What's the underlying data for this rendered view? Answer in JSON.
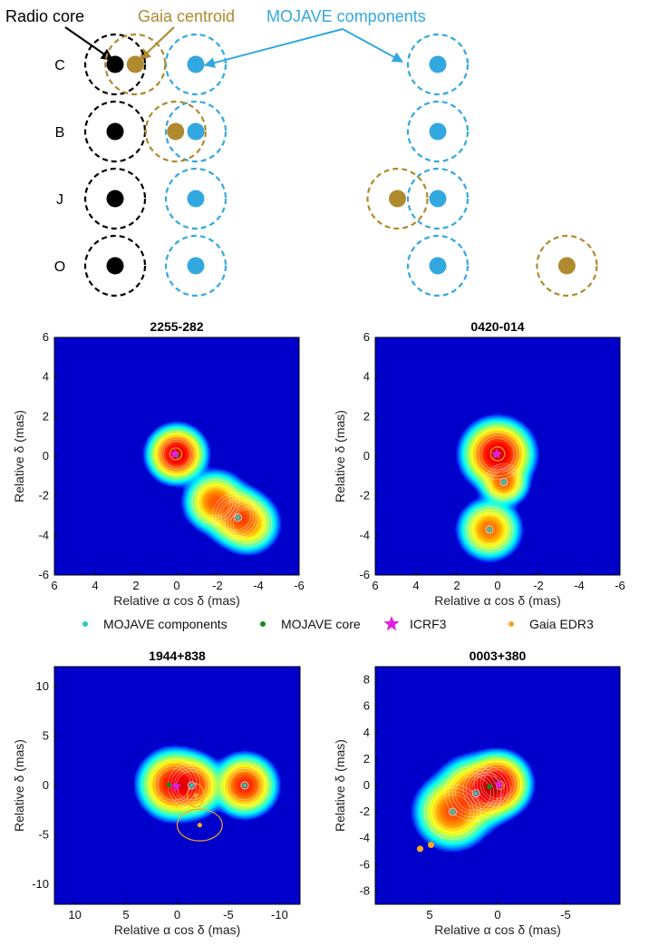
{
  "schematic": {
    "labels": {
      "radio_core": "Radio core",
      "gaia_centroid": "Gaia centroid",
      "mojave_components": "MOJAVE components"
    },
    "colors": {
      "radio": "#000000",
      "gaia": "#b08a2e",
      "mojave": "#33a8e0"
    },
    "rows": [
      {
        "name": "C",
        "core": 0,
        "comp1": 1,
        "comp2": 4,
        "gaia": 0.25
      },
      {
        "name": "B",
        "core": 0,
        "comp1": 1,
        "comp2": 4,
        "gaia": 0.75
      },
      {
        "name": "J",
        "core": 0,
        "comp1": 1,
        "comp2": 4,
        "gaia": 3.5
      },
      {
        "name": "O",
        "core": 0,
        "comp1": 1,
        "comp2": 4,
        "gaia": 5.6
      }
    ]
  },
  "legend": {
    "items": [
      {
        "label": "MOJAVE components",
        "color": "#26c6c6",
        "marker": "dot"
      },
      {
        "label": "MOJAVE core",
        "color": "#1a8a1a",
        "marker": "dot"
      },
      {
        "label": "ICRF3",
        "color": "#e020e0",
        "marker": "star"
      },
      {
        "label": "Gaia EDR3",
        "color": "#f5a623",
        "marker": "dot"
      }
    ]
  },
  "chart_data": [
    {
      "type": "heatmap",
      "title": "2255-282",
      "xlabel": "Relative α cos δ (mas)",
      "ylabel": "Relative δ (mas)",
      "xlim": [
        6,
        -6
      ],
      "ylim": [
        -6,
        6
      ],
      "xticks": [
        "6",
        "4",
        "2",
        "0",
        "-2",
        "-4",
        "-6"
      ],
      "yticks": [
        "-6",
        "-4",
        "-2",
        "0",
        "2",
        "4",
        "6"
      ],
      "blobs": [
        {
          "x": 0,
          "y": 0.1,
          "amp": 1.0,
          "s": 0.45
        },
        {
          "x": -1.9,
          "y": -2.3,
          "amp": 0.32,
          "s": 0.5
        },
        {
          "x": -2.9,
          "y": -3.0,
          "amp": 0.3,
          "s": 0.5
        },
        {
          "x": -3.5,
          "y": -3.4,
          "amp": 0.22,
          "s": 0.5
        }
      ],
      "components": [
        {
          "x": -3.0,
          "y": -3.1
        }
      ],
      "core": {
        "x": 0,
        "y": 0.05
      },
      "icrf3": {
        "x": 0.1,
        "y": 0.1
      },
      "gaia": [
        {
          "x": 0.05,
          "y": 0.12,
          "ex": 0.3,
          "ey": 0.3
        }
      ]
    },
    {
      "type": "heatmap",
      "title": "0420-014",
      "xlabel": "Relative α cos δ (mas)",
      "ylabel": "Relative δ (mas)",
      "xlim": [
        6,
        -6
      ],
      "ylim": [
        -6,
        6
      ],
      "xticks": [
        "6",
        "4",
        "2",
        "0",
        "-2",
        "-4",
        "-6"
      ],
      "yticks": [
        "-6",
        "-4",
        "-2",
        "0",
        "2",
        "4",
        "6"
      ],
      "blobs": [
        {
          "x": 0,
          "y": 0.1,
          "amp": 1.0,
          "s": 0.55
        },
        {
          "x": -0.3,
          "y": -1.3,
          "amp": 0.3,
          "s": 0.4
        },
        {
          "x": 0.4,
          "y": -3.7,
          "amp": 0.28,
          "s": 0.5
        }
      ],
      "components": [
        {
          "x": -0.3,
          "y": -1.3
        },
        {
          "x": 0.4,
          "y": -3.7
        }
      ],
      "core": {
        "x": 0.1,
        "y": 0.05
      },
      "icrf3": {
        "x": 0.05,
        "y": 0.1
      },
      "gaia": [
        {
          "x": 0.0,
          "y": 0.12,
          "ex": 0.35,
          "ey": 0.35
        }
      ]
    },
    {
      "type": "heatmap",
      "title": "1944+838",
      "xlabel": "Relative α cos δ (mas)",
      "ylabel": "Relative δ (mas)",
      "xlim": [
        12,
        -12
      ],
      "ylim": [
        -12,
        12
      ],
      "xticks": [
        "10",
        "5",
        "0",
        "-5",
        "-10"
      ],
      "yticks": [
        "-10",
        "-5",
        "0",
        "5",
        "10"
      ],
      "blobs": [
        {
          "x": 0.3,
          "y": 0.1,
          "amp": 0.7,
          "s": 0.55
        },
        {
          "x": -1.4,
          "y": 0.0,
          "amp": 0.55,
          "s": 0.5
        },
        {
          "x": -6.6,
          "y": 0.0,
          "amp": 0.55,
          "s": 0.5
        }
      ],
      "components": [
        {
          "x": -1.4,
          "y": 0.0
        },
        {
          "x": -6.6,
          "y": 0.0
        }
      ],
      "core": {
        "x": 0.8,
        "y": 0.05
      },
      "icrf3": {
        "x": 0.1,
        "y": -0.1
      },
      "gaia": [
        {
          "x": -1.8,
          "y": -1.0,
          "ex": 0.8,
          "ey": 1.2
        },
        {
          "x": -2.2,
          "y": -4.0,
          "ex": 2.2,
          "ey": 1.6
        }
      ]
    },
    {
      "type": "heatmap",
      "title": "0003+380",
      "xlabel": "Relative α cos δ (mas)",
      "ylabel": "Relative δ (mas)",
      "xlim": [
        9,
        -9
      ],
      "ylim": [
        -9,
        9
      ],
      "xticks": [
        "5",
        "0",
        "-5"
      ],
      "yticks": [
        "-8",
        "-6",
        "-4",
        "-2",
        "0",
        "2",
        "4",
        "6",
        "8"
      ],
      "blobs": [
        {
          "x": 0,
          "y": 0.1,
          "amp": 1.0,
          "s": 0.5
        },
        {
          "x": 0.8,
          "y": -0.3,
          "amp": 0.5,
          "s": 0.5
        },
        {
          "x": 1.8,
          "y": -0.6,
          "amp": 0.35,
          "s": 0.6
        },
        {
          "x": 3.3,
          "y": -2.0,
          "amp": 0.35,
          "s": 0.6
        }
      ],
      "components": [
        {
          "x": 1.6,
          "y": -0.6
        },
        {
          "x": 3.3,
          "y": -2.0
        }
      ],
      "core": {
        "x": 0.6,
        "y": -0.1
      },
      "icrf3": {
        "x": -0.1,
        "y": 0.05
      },
      "gaia": [
        {
          "x": -0.2,
          "y": 0.0,
          "ex": 0.3,
          "ey": 0.3
        },
        {
          "x": 5.7,
          "y": -4.8,
          "ex": 0.2,
          "ey": 0.2
        },
        {
          "x": 4.9,
          "y": -4.5,
          "ex": 0.2,
          "ey": 0.2
        }
      ]
    }
  ]
}
